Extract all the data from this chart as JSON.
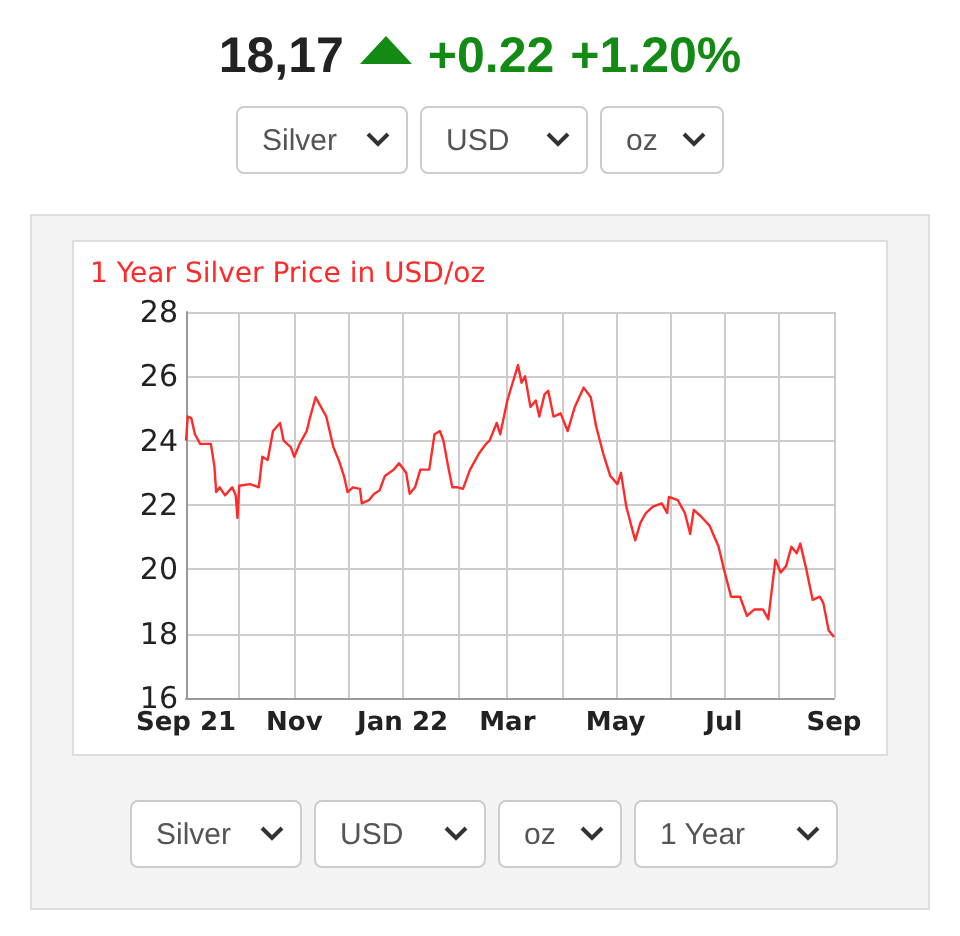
{
  "chart_data": {
    "type": "line",
    "title": "1 Year Silver Price in USD/oz",
    "annotations": [
      "18,17",
      "+0.22",
      "+1.20%",
      "Silver",
      "USD",
      "oz",
      "Silver",
      "USD",
      "oz",
      "1 Year"
    ],
    "x": [
      "2021-09-01",
      "2021-09-02",
      "2021-09-04",
      "2021-09-06",
      "2021-09-09",
      "2021-09-13",
      "2021-09-15",
      "2021-09-17",
      "2021-09-18",
      "2021-09-20",
      "2021-09-23",
      "2021-09-27",
      "2021-09-29",
      "2021-09-30",
      "2021-10-01",
      "2021-10-07",
      "2021-10-12",
      "2021-10-14",
      "2021-10-17",
      "2021-10-20",
      "2021-10-24",
      "2021-10-26",
      "2021-10-30",
      "2021-11-01",
      "2021-11-04",
      "2021-11-08",
      "2021-11-10",
      "2021-11-13",
      "2021-11-16",
      "2021-11-19",
      "2021-11-23",
      "2021-11-26",
      "2021-11-29",
      "2021-12-01",
      "2021-12-04",
      "2021-12-08",
      "2021-12-09",
      "2021-12-13",
      "2021-12-16",
      "2021-12-19",
      "2021-12-22",
      "2021-12-27",
      "2021-12-30",
      "2022-01-03",
      "2022-01-05",
      "2022-01-08",
      "2022-01-11",
      "2022-01-16",
      "2022-01-19",
      "2022-01-22",
      "2022-01-24",
      "2022-01-27",
      "2022-01-29",
      "2022-02-01",
      "2022-02-04",
      "2022-02-08",
      "2022-02-13",
      "2022-02-17",
      "2022-02-19",
      "2022-02-23",
      "2022-02-25",
      "2022-03-01",
      "2022-03-04",
      "2022-03-07",
      "2022-03-09",
      "2022-03-11",
      "2022-03-14",
      "2022-03-17",
      "2022-03-19",
      "2022-03-22",
      "2022-03-24",
      "2022-03-27",
      "2022-03-31",
      "2022-04-04",
      "2022-04-08",
      "2022-04-13",
      "2022-04-17",
      "2022-04-20",
      "2022-04-24",
      "2022-04-28",
      "2022-05-02",
      "2022-05-04",
      "2022-05-07",
      "2022-05-12",
      "2022-05-15",
      "2022-05-18",
      "2022-05-22",
      "2022-05-27",
      "2022-05-30",
      "2022-05-31",
      "2022-06-05",
      "2022-06-09",
      "2022-06-12",
      "2022-06-14",
      "2022-06-18",
      "2022-06-23",
      "2022-06-28",
      "2022-07-01",
      "2022-07-05",
      "2022-07-10",
      "2022-07-14",
      "2022-07-18",
      "2022-07-23",
      "2022-07-26",
      "2022-07-30",
      "2022-08-02",
      "2022-08-05",
      "2022-08-08",
      "2022-08-11",
      "2022-08-13",
      "2022-08-16",
      "2022-08-20",
      "2022-08-24",
      "2022-08-26",
      "2022-08-29",
      "2022-09-01"
    ],
    "series": [
      {
        "color": "#ff2a2a",
        "values": [
          24.0,
          24.75,
          24.7,
          24.2,
          23.9,
          23.9,
          23.9,
          23.2,
          22.4,
          22.55,
          22.3,
          22.55,
          22.3,
          21.6,
          22.6,
          22.65,
          22.55,
          23.5,
          23.4,
          24.3,
          24.55,
          24.0,
          23.8,
          23.5,
          23.9,
          24.3,
          24.75,
          25.35,
          25.05,
          24.75,
          23.8,
          23.4,
          22.9,
          22.4,
          22.55,
          22.5,
          22.05,
          22.15,
          22.35,
          22.45,
          22.9,
          23.1,
          23.3,
          23.0,
          22.35,
          22.55,
          23.1,
          23.1,
          24.2,
          24.3,
          24.0,
          23.1,
          22.55,
          22.55,
          22.5,
          23.1,
          23.6,
          23.9,
          24.0,
          24.55,
          24.2,
          25.25,
          25.8,
          26.35,
          25.8,
          26.0,
          25.05,
          25.25,
          24.75,
          25.45,
          25.55,
          24.75,
          24.85,
          24.3,
          25.05,
          25.65,
          25.35,
          24.45,
          23.6,
          22.9,
          22.65,
          23.0,
          21.95,
          20.9,
          21.45,
          21.75,
          21.95,
          22.05,
          21.75,
          22.25,
          22.15,
          21.75,
          21.1,
          21.85,
          21.65,
          21.35,
          20.7,
          20.0,
          19.15,
          19.15,
          18.55,
          18.75,
          18.75,
          18.45,
          20.3,
          19.9,
          20.1,
          20.7,
          20.5,
          20.8,
          20.1,
          19.05,
          19.15,
          18.95,
          18.1,
          17.9
        ]
      }
    ],
    "xlim": [
      "2021-09-01",
      "2022-09-01"
    ],
    "xticks": [
      {
        "value": "2021-09-01",
        "label": "Sep 21"
      },
      {
        "value": "2021-10-01",
        "label": null
      },
      {
        "value": "2021-11-01",
        "label": "Nov"
      },
      {
        "value": "2021-12-01",
        "label": null
      },
      {
        "value": "2022-01-01",
        "label": "Jan 22"
      },
      {
        "value": "2022-02-01",
        "label": null
      },
      {
        "value": "2022-03-01",
        "label": "Mar"
      },
      {
        "value": "2022-04-01",
        "label": null
      },
      {
        "value": "2022-05-01",
        "label": "May"
      },
      {
        "value": "2022-06-01",
        "label": null
      },
      {
        "value": "2022-07-01",
        "label": "Jul"
      },
      {
        "value": "2022-08-01",
        "label": null
      },
      {
        "value": "2022-09-01",
        "label": "Sep"
      }
    ],
    "ylim": [
      16,
      28
    ],
    "yticks": [
      16,
      18,
      20,
      22,
      24,
      26,
      28
    ],
    "grid": true,
    "marker": "none",
    "line_style": "solid"
  }
}
